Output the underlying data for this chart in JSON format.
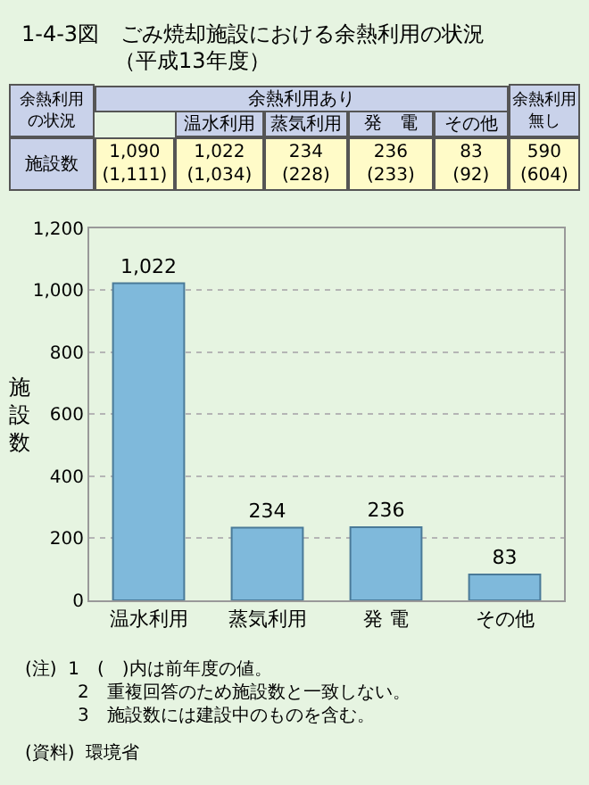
{
  "chart_data": {
    "type": "bar",
    "title": "1-4-3図　ごみ焼却施設における余熱利用の状況",
    "subtitle": "（平成13年度）",
    "ylabel": "施設数",
    "categories": [
      "温水利用",
      "蒸気利用",
      "発 電",
      "その他"
    ],
    "values": [
      1022,
      234,
      236,
      83
    ],
    "value_labels": [
      "1,022",
      "234",
      "236",
      "83"
    ],
    "color": "#7fb9db",
    "ylim": [
      0,
      1200
    ],
    "yticks": [
      0,
      {
        "value": 200,
        "label": "200"
      },
      {
        "value": 400,
        "label": "400"
      },
      {
        "value": 600,
        "label": "600"
      },
      {
        "value": 800,
        "label": "800"
      },
      {
        "value": 1000,
        "label": "1,000"
      },
      {
        "value": 1200,
        "label": "1,200"
      }
    ],
    "grid": "y",
    "legend": false,
    "annotations": [
      "余熱利用の状況",
      "余熱利用あり",
      "温水利用",
      "蒸気利用",
      "発　電",
      "その他",
      "余熱利用無し",
      "施設数",
      "1,090\n(1,111)",
      "1,022\n(1,034)",
      "234\n(228)",
      "236\n(233)",
      "83\n(92)",
      "590\n(604)",
      "(注)  1　(　)内は前年度の値。\n　　   2　重複回答のため施設数と一致しない。\n　　   3　施設数には建設中のものを含む。",
      "(資料)  環境省"
    ]
  }
}
